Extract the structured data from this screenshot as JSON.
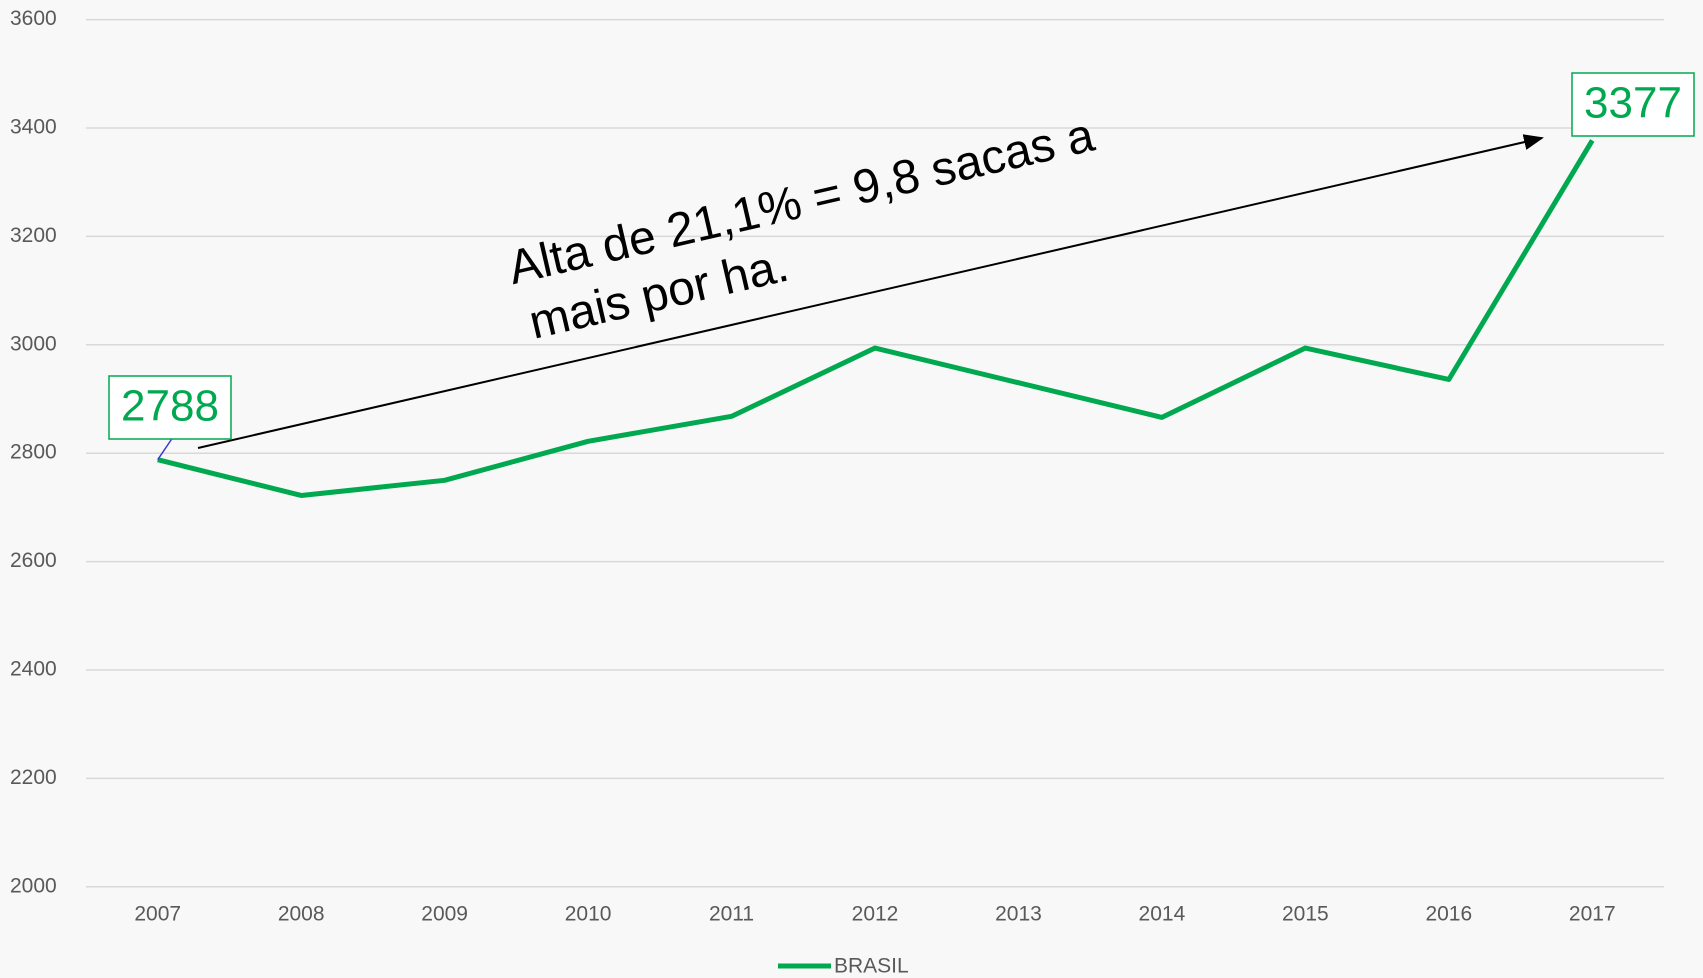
{
  "chart_data": {
    "type": "line",
    "categories": [
      "2007",
      "2008",
      "2009",
      "2010",
      "2011",
      "2012",
      "2013",
      "2014",
      "2015",
      "2016",
      "2017"
    ],
    "series": [
      {
        "name": "BRASIL",
        "color": "#00a84f",
        "values": [
          2788,
          2722,
          2750,
          2822,
          2868,
          2994,
          2930,
          2866,
          2994,
          2936,
          3377
        ]
      }
    ],
    "data_labels": [
      0,
      10
    ],
    "ylim": [
      2000,
      3600
    ],
    "yticks": [
      2000,
      2200,
      2400,
      2600,
      2800,
      3000,
      3200,
      3400,
      3600
    ],
    "grid": true,
    "legend": "bottom",
    "annotation": [
      "Alta de 21,1% = 9,8 sacas a",
      "mais por ha."
    ]
  }
}
